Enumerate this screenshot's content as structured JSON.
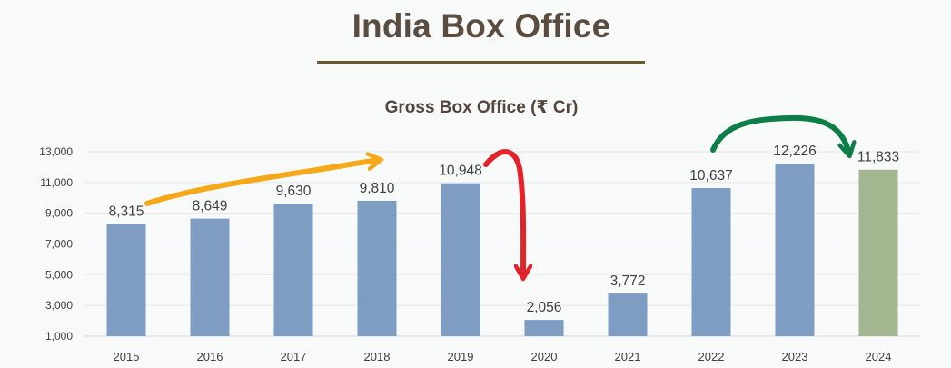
{
  "page_title": "India Box Office",
  "chart_data": {
    "type": "bar",
    "title": "Gross Box Office (₹ Cr)",
    "categories": [
      "2015",
      "2016",
      "2017",
      "2018",
      "2019",
      "2020",
      "2021",
      "2022",
      "2023",
      "2024"
    ],
    "values": [
      8315,
      8649,
      9630,
      9810,
      10948,
      2056,
      3772,
      10637,
      12226,
      11833
    ],
    "data_labels": [
      "8,315",
      "8,649",
      "9,630",
      "9,810",
      "10,948",
      "2,056",
      "3,772",
      "10,637",
      "12,226",
      "11,833"
    ],
    "xlabel": "",
    "ylabel": "",
    "ylim": [
      1000,
      13000
    ],
    "yticks": [
      1000,
      3000,
      5000,
      7000,
      9000,
      11000,
      13000
    ],
    "ytick_labels": [
      "1,000",
      "3,000",
      "5,000",
      "7,000",
      "9,000",
      "11,000",
      "13,000"
    ],
    "grid": true,
    "colors": {
      "bar_default": "#7f9cc3",
      "bar_highlight": "#a3b68f",
      "highlight_category": "2024",
      "grid": "#e3e6ea",
      "annotation_growth_orange": "#f5a81a",
      "annotation_drop_red": "#e3232a",
      "annotation_recovery_green": "#0e7e48"
    },
    "annotations": [
      {
        "type": "arrow",
        "color_key": "annotation_growth_orange",
        "from": "2015",
        "to": "2018"
      },
      {
        "type": "arrow",
        "color_key": "annotation_drop_red",
        "from": "2019",
        "to": "2020"
      },
      {
        "type": "arrow",
        "color_key": "annotation_recovery_green",
        "from": "2022",
        "to": "2024"
      }
    ]
  }
}
